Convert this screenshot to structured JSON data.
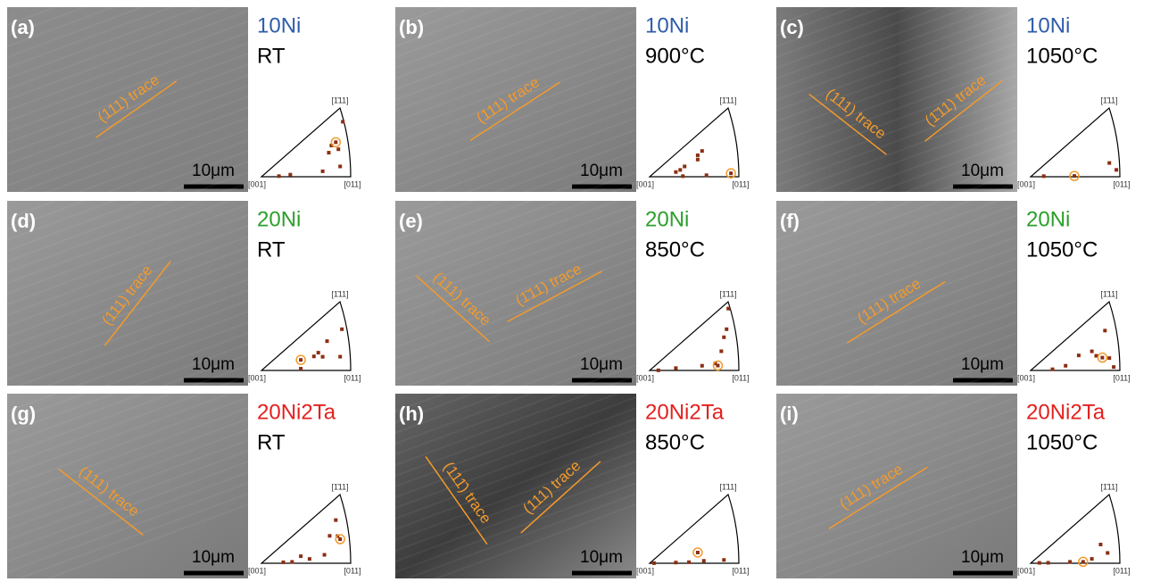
{
  "scale_bar": "10μm",
  "ipf_labels": {
    "top": "[1̄11]",
    "left": "[001]",
    "right": "[011]"
  },
  "panels": [
    {
      "label": "(a)",
      "alloy": "10Ni",
      "color": "#2f5dab",
      "condition": "RT",
      "traces": [
        "(111) trace"
      ]
    },
    {
      "label": "(b)",
      "alloy": "10Ni",
      "color": "#2f5dab",
      "condition": "900°C",
      "traces": [
        "(111) trace"
      ]
    },
    {
      "label": "(c)",
      "alloy": "10Ni",
      "color": "#2f5dab",
      "condition": "1050°C",
      "traces": [
        "(111) trace",
        "(1̄11) trace"
      ]
    },
    {
      "label": "(d)",
      "alloy": "20Ni",
      "color": "#2ca02c",
      "condition": "RT",
      "traces": [
        "(111) trace"
      ]
    },
    {
      "label": "(e)",
      "alloy": "20Ni",
      "color": "#2ca02c",
      "condition": "850°C",
      "traces": [
        "(111) trace",
        "(1̄11) trace"
      ]
    },
    {
      "label": "(f)",
      "alloy": "20Ni",
      "color": "#2ca02c",
      "condition": "1050°C",
      "traces": [
        "(111) trace"
      ]
    },
    {
      "label": "(g)",
      "alloy": "20Ni2Ta",
      "color": "#e3211f",
      "condition": "RT",
      "traces": [
        "(111) trace"
      ]
    },
    {
      "label": "(h)",
      "alloy": "20Ni2Ta",
      "color": "#e3211f",
      "condition": "850°C",
      "traces": [
        "(111̄) trace",
        "(111) trace"
      ]
    },
    {
      "label": "(i)",
      "alloy": "20Ni2Ta",
      "color": "#e3211f",
      "condition": "1050°C",
      "traces": [
        "(111) trace"
      ]
    }
  ]
}
